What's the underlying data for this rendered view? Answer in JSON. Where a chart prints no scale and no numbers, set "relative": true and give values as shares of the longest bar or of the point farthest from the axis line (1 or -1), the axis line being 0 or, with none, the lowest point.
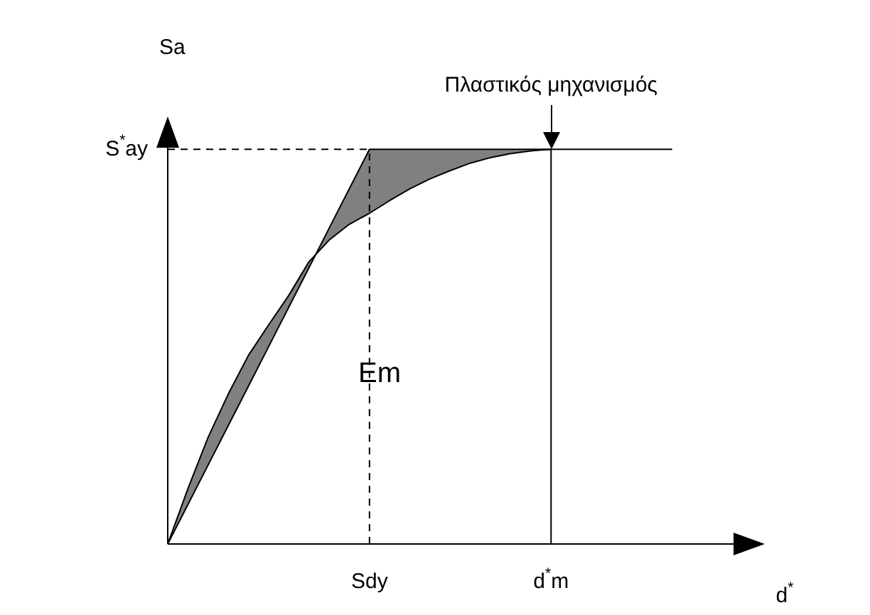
{
  "chart_data": {
    "type": "line",
    "xlabel": "d$^{*}$",
    "ylabel": "Sa",
    "relative": true,
    "categories": [
      null,
      null,
      null,
      null,
      null,
      null,
      null,
      null,
      null,
      null,
      null,
      null,
      null,
      null,
      null,
      null,
      null,
      null,
      null,
      null,
      null,
      null,
      null,
      null,
      null,
      null
    ],
    "series": [
      {
        "color": "#000000",
        "values": [
          0,
          0.14,
          0.27,
          0.38,
          0.478,
          0.555,
          0.63,
          0.715,
          0.77,
          0.81,
          0.838,
          0.87,
          0.9,
          0.925,
          0.946,
          0.965,
          0.979,
          0.989,
          0.996,
          1,
          null,
          null,
          null,
          null,
          null,
          null
        ]
      },
      {
        "color": "#000000",
        "values": [
          0,
          0.1,
          0.2,
          0.3,
          0.4,
          0.5,
          0.6,
          0.7,
          0.8,
          0.9,
          1,
          1,
          1,
          1,
          1,
          1,
          1,
          1,
          1,
          1,
          1,
          1,
          1,
          1,
          1,
          1
        ]
      }
    ],
    "ref_lines": [
      {
        "axis": "y",
        "value": 1,
        "line_style": "dashed"
      }
    ],
    "annotations": [
      {
        "text": "Πλαστικός μηχανισμός",
        "y": 1
      },
      "Em",
      "Sdy",
      "d$^{*}$m",
      "S$^{*}$ay"
    ],
    "legend": false,
    "marker": "none",
    "line_style": "solid"
  }
}
